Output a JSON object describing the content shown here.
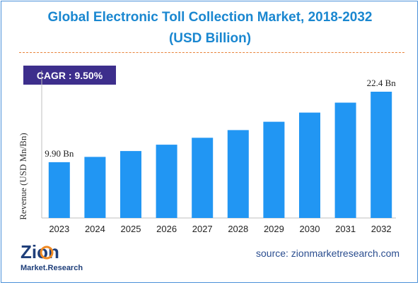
{
  "header": {
    "title_line1": "Global Electronic Toll Collection Market, 2018-2032",
    "title_line2": "(USD Billion)"
  },
  "cagr_badge": "CAGR : 9.50%",
  "chart_data": {
    "type": "bar",
    "title": "Global Electronic Toll Collection Market, 2018-2032 (USD Billion)",
    "xlabel": "",
    "ylabel": "Revenue (USD Mn/Bn)",
    "categories": [
      "2023",
      "2024",
      "2025",
      "2026",
      "2027",
      "2028",
      "2029",
      "2030",
      "2031",
      "2032"
    ],
    "values": [
      9.9,
      10.84,
      11.87,
      13.0,
      14.23,
      15.59,
      17.07,
      18.69,
      20.46,
      22.4
    ],
    "data_labels": [
      {
        "category": "2023",
        "text": "9.90 Bn"
      },
      {
        "category": "2032",
        "text": "22.4 Bn"
      }
    ],
    "ylim": [
      0,
      25
    ],
    "grid": false,
    "bar_color": "#2196f3",
    "axis_color": "#bfbfbf"
  },
  "source": "source: zionmarketresearch.com",
  "logo": {
    "word1": "Zion",
    "word2": "Market.Research",
    "colors": {
      "dark": "#1f3f7a",
      "accent": "#f08a24"
    }
  }
}
